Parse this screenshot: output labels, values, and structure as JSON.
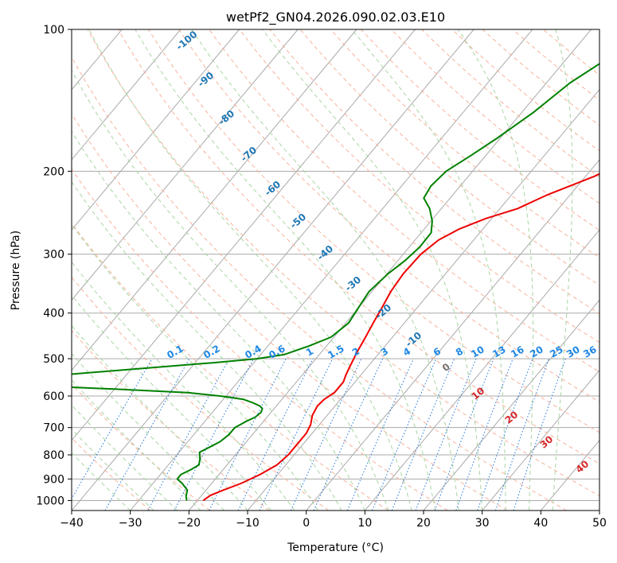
{
  "chart_data": {
    "type": "line",
    "title": "wetPf2_GN04.2026.090.02.03.E10",
    "xlabel": "Temperature (°C)",
    "ylabel": "Pressure (hPa)",
    "xlim": [
      -40,
      50
    ],
    "ylim": [
      1050,
      100
    ],
    "y_scale": "log",
    "grid": true,
    "x_ticks": [
      "−40",
      "−30",
      "−20",
      "−10",
      "0",
      "10",
      "20",
      "30",
      "40",
      "50"
    ],
    "x_tick_values": [
      -40,
      -30,
      -20,
      -10,
      0,
      10,
      20,
      30,
      40,
      50
    ],
    "y_ticks": [
      "100",
      "200",
      "300",
      "400",
      "500",
      "600",
      "700",
      "800",
      "900",
      "1000"
    ],
    "y_tick_values": [
      100,
      200,
      300,
      400,
      500,
      600,
      700,
      800,
      900,
      1000
    ],
    "dry_adiabat_labels": [
      "-100",
      "-90",
      "-80",
      "-70",
      "-60",
      "-50",
      "-40",
      "-30",
      "-20",
      "-10"
    ],
    "dry_adiabat_values": [
      -100,
      -90,
      -80,
      -70,
      -60,
      -50,
      -40,
      -30,
      -20,
      -10
    ],
    "mixing_ratio_labels": [
      "0.1",
      "0.2",
      "0.4",
      "0.6",
      "1",
      "1.5",
      "2",
      "3",
      "4",
      "6",
      "8",
      "10",
      "13",
      "16",
      "20",
      "25",
      "30",
      "36"
    ],
    "mixing_ratio_values": [
      0.1,
      0.2,
      0.4,
      0.6,
      1,
      1.5,
      2,
      3,
      4,
      6,
      8,
      10,
      13,
      16,
      20,
      25,
      30,
      36
    ],
    "moist_adiabat_labels": [
      "0",
      "10",
      "20",
      "30",
      "40"
    ],
    "moist_adiabat_values": [
      0,
      10,
      20,
      30,
      40
    ],
    "colors": {
      "temperature": "#ee0000",
      "dewpoint": "#008000",
      "isotherm": "#aaaaaa",
      "isobar": "#aaaaaa",
      "dry_adiabat": "#f7b29a",
      "moist_adiabat": "#a8d5a2",
      "mixing_ratio": "#2277dd",
      "dry_label": "#1f77b4",
      "mixing_label": "#1e88e5",
      "moist_label_warm": "#d62728",
      "moist_label_zero": "#777777",
      "tan_curve": "#d7bfa0"
    },
    "series": [
      {
        "key": "temperature",
        "points": [
          [
            1000,
            -19.0
          ],
          [
            975,
            -18.5
          ],
          [
            950,
            -17.0
          ],
          [
            920,
            -15.0
          ],
          [
            880,
            -13.0
          ],
          [
            840,
            -11.5
          ],
          [
            800,
            -11.0
          ],
          [
            760,
            -11.0
          ],
          [
            720,
            -11.0
          ],
          [
            690,
            -11.5
          ],
          [
            660,
            -12.5
          ],
          [
            630,
            -13.0
          ],
          [
            610,
            -12.8
          ],
          [
            590,
            -12.0
          ],
          [
            560,
            -12.0
          ],
          [
            540,
            -12.6
          ],
          [
            510,
            -13.3
          ],
          [
            480,
            -14.0
          ],
          [
            450,
            -14.6
          ],
          [
            420,
            -15.3
          ],
          [
            390,
            -16.0
          ],
          [
            360,
            -16.8
          ],
          [
            330,
            -17.2
          ],
          [
            300,
            -17.0
          ],
          [
            280,
            -16.0
          ],
          [
            265,
            -14.0
          ],
          [
            252,
            -11.0
          ],
          [
            240,
            -7.0
          ],
          [
            225,
            -4.0
          ],
          [
            205,
            1.5
          ],
          [
            180,
            7.0
          ],
          [
            160,
            12.0
          ],
          [
            140,
            18.0
          ],
          [
            120,
            24.0
          ],
          [
            100,
            33.5
          ]
        ]
      },
      {
        "key": "dewpoint",
        "points": [
          [
            1000,
            -21.8
          ],
          [
            980,
            -22.5
          ],
          [
            950,
            -23.2
          ],
          [
            920,
            -25.0
          ],
          [
            900,
            -26.5
          ],
          [
            880,
            -26.5
          ],
          [
            860,
            -25.5
          ],
          [
            840,
            -24.8
          ],
          [
            815,
            -25.5
          ],
          [
            790,
            -26.5
          ],
          [
            770,
            -25.5
          ],
          [
            750,
            -24.5
          ],
          [
            725,
            -24.0
          ],
          [
            700,
            -24.0
          ],
          [
            680,
            -23.0
          ],
          [
            665,
            -22.0
          ],
          [
            650,
            -21.7
          ],
          [
            638,
            -22.0
          ],
          [
            630,
            -22.8
          ],
          [
            620,
            -24.5
          ],
          [
            610,
            -26.5
          ],
          [
            600,
            -31.0
          ],
          [
            590,
            -37.0
          ],
          [
            580,
            -50.0
          ],
          [
            570,
            -65.0
          ],
          [
            540,
            -60.0
          ],
          [
            520,
            -45.0
          ],
          [
            510,
            -37.0
          ],
          [
            500,
            -30.0
          ],
          [
            490,
            -26.0
          ],
          [
            470,
            -23.0
          ],
          [
            450,
            -20.5
          ],
          [
            420,
            -19.5
          ],
          [
            390,
            -20.0
          ],
          [
            360,
            -20.5
          ],
          [
            330,
            -19.8
          ],
          [
            310,
            -18.8
          ],
          [
            290,
            -18.2
          ],
          [
            270,
            -18.3
          ],
          [
            255,
            -19.8
          ],
          [
            240,
            -22.0
          ],
          [
            228,
            -24.5
          ],
          [
            215,
            -25.0
          ],
          [
            200,
            -24.5
          ],
          [
            185,
            -22.5
          ],
          [
            170,
            -20.5
          ],
          [
            150,
            -18.0
          ],
          [
            130,
            -16.0
          ],
          [
            115,
            -13.0
          ],
          [
            100,
            -5.0
          ]
        ]
      }
    ]
  }
}
